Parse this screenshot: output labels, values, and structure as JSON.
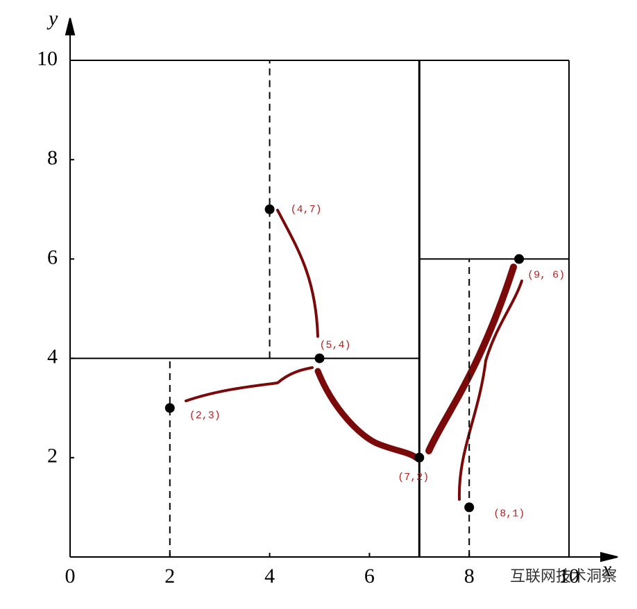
{
  "chart_data": {
    "type": "scatter",
    "x": [
      2,
      4,
      5,
      7,
      8,
      9
    ],
    "y": [
      3,
      7,
      4,
      2,
      1,
      6
    ],
    "point_labels": [
      "(2,3)",
      "(4,7)",
      "(5,4)",
      "(7,2)",
      "(8,1)",
      "(9, 6)"
    ],
    "color": "#000000",
    "label_color": "#b22222",
    "xlim": [
      0,
      10
    ],
    "ylim": [
      0,
      10
    ],
    "xticks": [
      0,
      2,
      4,
      6,
      8,
      10
    ],
    "yticks": [
      2,
      4,
      6,
      8,
      10
    ],
    "x_label": "x",
    "y_label": "y",
    "partitions": [
      {
        "x": [
          7,
          7
        ],
        "y": [
          0,
          10
        ],
        "style": "solid"
      },
      {
        "x": [
          0,
          7
        ],
        "y": [
          4,
          4
        ],
        "style": "solid"
      },
      {
        "x": [
          2,
          2
        ],
        "y": [
          0,
          4
        ],
        "style": "dashed"
      },
      {
        "x": [
          4,
          4
        ],
        "y": [
          4,
          10
        ],
        "style": "dashed"
      },
      {
        "x": [
          7,
          10
        ],
        "y": [
          6,
          6
        ],
        "style": "solid"
      },
      {
        "x": [
          8,
          8
        ],
        "y": [
          0,
          6
        ],
        "style": "dashed"
      }
    ],
    "watermark": "互联网技术洞察"
  }
}
